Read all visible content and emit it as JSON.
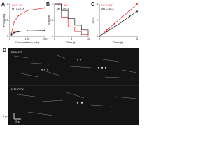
{
  "chart_data": [
    {
      "type": "line",
      "label": "A",
      "xlabel": "Concentration (nM)",
      "ylabel": "Probability",
      "x": [
        10,
        25,
        50,
        100,
        200
      ],
      "xlim": [
        0,
        200
      ],
      "xticks": [
        0,
        100,
        200
      ],
      "ylim": [
        0,
        1
      ],
      "yticks": [
        0,
        0.5,
        1
      ],
      "series": [
        {
          "name": "DCX-WT",
          "color": "#e0302a",
          "values": [
            0.1,
            0.45,
            0.65,
            0.8,
            0.88
          ]
        },
        {
          "name": "MT1-DCX",
          "color": "#222222",
          "values": [
            0.05,
            0.12,
            0.15,
            0.17,
            0.18
          ]
        }
      ]
    },
    {
      "type": "step",
      "label": "B",
      "xlabel": "Time (s)",
      "ylabel": "Survival",
      "x": [
        0,
        2,
        4,
        6,
        8,
        10
      ],
      "xlim": [
        0,
        10
      ],
      "xticks": [
        0,
        5,
        10
      ],
      "ylim": [
        0,
        1
      ],
      "yticks": [
        0,
        0.5,
        1
      ],
      "series": [
        {
          "name": "DCX-WT",
          "color": "#e0302a",
          "values": [
            1,
            0.6,
            0.3,
            0.15,
            0.05,
            0
          ]
        },
        {
          "name": "MT1-DCX",
          "color": "#222222",
          "values": [
            1,
            0.8,
            0.55,
            0.35,
            0.2,
            0.05
          ]
        }
      ]
    },
    {
      "type": "line",
      "label": "C",
      "xlabel": "Time (s)",
      "ylabel": "MSD",
      "x": [
        0,
        1,
        2,
        3,
        4,
        5
      ],
      "xlim": [
        0,
        5
      ],
      "xticks": [
        0,
        5
      ],
      "ylim": [
        0,
        4
      ],
      "yticks": [
        0,
        2,
        4
      ],
      "series": [
        {
          "name": "DCX-WT",
          "color": "#e0302a",
          "values": [
            0,
            0.8,
            1.6,
            2.4,
            3.2,
            4
          ]
        },
        {
          "name": "MT1-DCX",
          "color": "#222222",
          "values": [
            0,
            0.6,
            1.2,
            1.8,
            2.5,
            3.1
          ]
        }
      ]
    }
  ],
  "panel_d": {
    "label": "D",
    "top": "DCX-WT",
    "bottom": "MT1-DCX",
    "space_bar": "5 µm",
    "time_bar": "5 s"
  }
}
